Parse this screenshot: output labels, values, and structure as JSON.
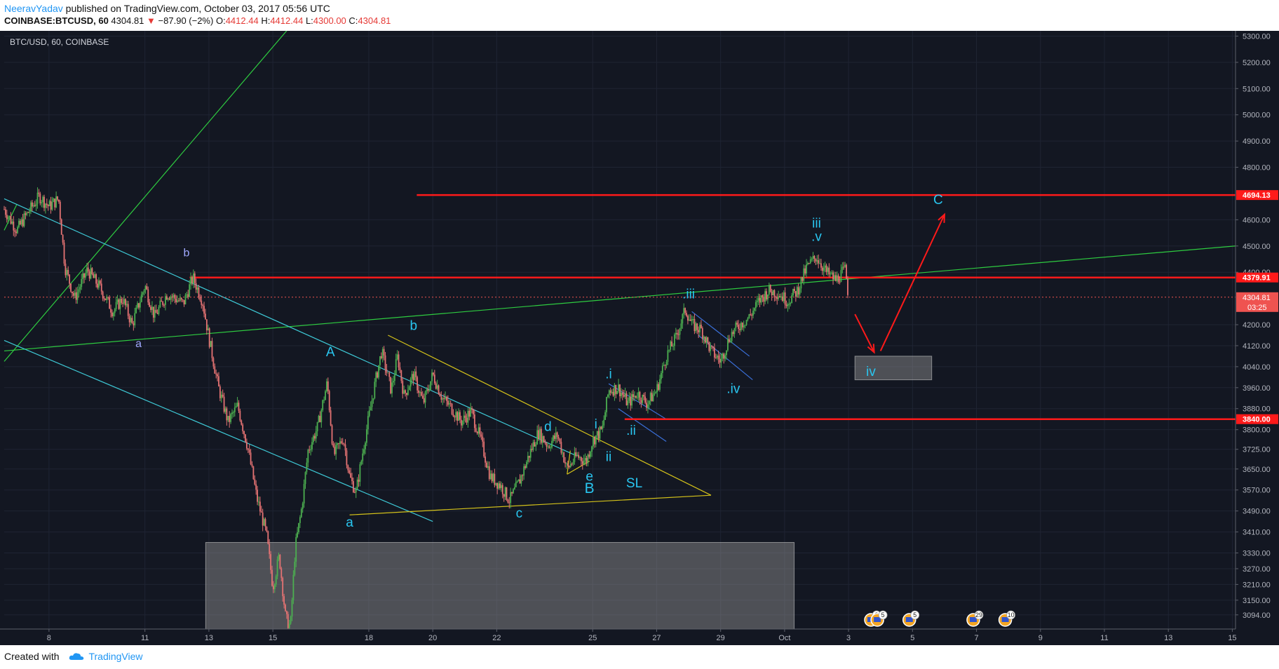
{
  "header": {
    "author": "NeeravYadav",
    "published_text": " published on TradingView.com, October 03, 2017 05:56 UTC",
    "symbol": "COINBASE:BTCUSD, 60",
    "last_price": "4304.81",
    "change": "−87.90 (−2%)",
    "open_label": "O:",
    "open": "4412.44",
    "high_label": "H:",
    "high": "4412.44",
    "low_label": "L:",
    "low": "4300.00",
    "close_label": "C:",
    "close": "4304.81"
  },
  "footer": {
    "created_with": "Created with",
    "brand": "TradingView"
  },
  "colors": {
    "background": "#131722",
    "grid": "#1f2433",
    "up": "#4caf50",
    "down": "#e57373",
    "red_line": "#ff1a1a",
    "cyan_line": "#3ec9d6",
    "green_line": "#2ecc40",
    "yellow_line": "#d4c21a",
    "wave_label": "#29c6f0"
  },
  "chart_data": {
    "type": "candlestick",
    "title": "BTC/USD, 60, COINBASE",
    "ylim": [
      3040,
      5320
    ],
    "y_ticks": [
      5300,
      5200,
      5100,
      5000,
      4900,
      4800,
      4600,
      4500,
      4400,
      4200,
      4120,
      4040,
      3960,
      3880,
      3800,
      3725,
      3650,
      3570,
      3490,
      3410,
      3330,
      3270,
      3210,
      3150,
      3094
    ],
    "y_tick_labels": [
      "5300.00",
      "5200.00",
      "5100.00",
      "5000.00",
      "4900.00",
      "4800.00",
      "4600.00",
      "4500.00",
      "4400.00",
      "4200.00",
      "4120.00",
      "4040.00",
      "3960.00",
      "3880.00",
      "3800.00",
      "3725.00",
      "3650.00",
      "3570.00",
      "3490.00",
      "3410.00",
      "3330.00",
      "3270.00",
      "3210.00",
      "3150.00",
      "3094.00"
    ],
    "x_ticks": [
      {
        "label": "8",
        "day": 8
      },
      {
        "label": "11",
        "day": 11
      },
      {
        "label": "13",
        "day": 13
      },
      {
        "label": "15",
        "day": 15
      },
      {
        "label": "18",
        "day": 18
      },
      {
        "label": "20",
        "day": 20
      },
      {
        "label": "22",
        "day": 22
      },
      {
        "label": "25",
        "day": 25
      },
      {
        "label": "27",
        "day": 27
      },
      {
        "label": "29",
        "day": 29
      },
      {
        "label": "Oct",
        "day": 31
      },
      {
        "label": "3",
        "day": 33
      },
      {
        "label": "5",
        "day": 35
      },
      {
        "label": "7",
        "day": 37
      },
      {
        "label": "9",
        "day": 39
      },
      {
        "label": "11",
        "day": 41
      },
      {
        "label": "13",
        "day": 43
      },
      {
        "label": "15",
        "day": 45
      }
    ],
    "x_range_days": [
      6.6,
      45.1
    ],
    "price_path": [
      [
        6.6,
        4640
      ],
      [
        7.0,
        4560
      ],
      [
        7.3,
        4620
      ],
      [
        7.7,
        4690
      ],
      [
        8.0,
        4650
      ],
      [
        8.3,
        4680
      ],
      [
        8.5,
        4420
      ],
      [
        8.8,
        4300
      ],
      [
        9.2,
        4410
      ],
      [
        9.6,
        4340
      ],
      [
        10.0,
        4250
      ],
      [
        10.3,
        4300
      ],
      [
        10.6,
        4200
      ],
      [
        11.0,
        4350
      ],
      [
        11.3,
        4230
      ],
      [
        11.7,
        4320
      ],
      [
        12.2,
        4280
      ],
      [
        12.5,
        4380
      ],
      [
        12.8,
        4290
      ],
      [
        13.0,
        4150
      ],
      [
        13.3,
        3960
      ],
      [
        13.6,
        3830
      ],
      [
        13.9,
        3890
      ],
      [
        14.2,
        3740
      ],
      [
        14.5,
        3540
      ],
      [
        14.8,
        3400
      ],
      [
        15.0,
        3200
      ],
      [
        15.2,
        3320
      ],
      [
        15.4,
        3080
      ],
      [
        15.55,
        3050
      ],
      [
        15.7,
        3350
      ],
      [
        15.9,
        3500
      ],
      [
        16.1,
        3720
      ],
      [
        16.4,
        3810
      ],
      [
        16.7,
        3980
      ],
      [
        16.9,
        3700
      ],
      [
        17.2,
        3770
      ],
      [
        17.4,
        3620
      ],
      [
        17.6,
        3560
      ],
      [
        17.9,
        3780
      ],
      [
        18.2,
        3980
      ],
      [
        18.4,
        4100
      ],
      [
        18.7,
        3950
      ],
      [
        18.9,
        4080
      ],
      [
        19.1,
        3930
      ],
      [
        19.4,
        4010
      ],
      [
        19.7,
        3900
      ],
      [
        20.0,
        4010
      ],
      [
        20.3,
        3920
      ],
      [
        20.6,
        3880
      ],
      [
        20.9,
        3830
      ],
      [
        21.2,
        3870
      ],
      [
        21.5,
        3760
      ],
      [
        21.8,
        3620
      ],
      [
        22.1,
        3590
      ],
      [
        22.4,
        3530
      ],
      [
        22.7,
        3600
      ],
      [
        23.0,
        3700
      ],
      [
        23.3,
        3790
      ],
      [
        23.6,
        3740
      ],
      [
        23.9,
        3780
      ],
      [
        24.2,
        3650
      ],
      [
        24.5,
        3700
      ],
      [
        24.8,
        3680
      ],
      [
        25.0,
        3760
      ],
      [
        25.3,
        3800
      ],
      [
        25.5,
        3950
      ],
      [
        25.8,
        3960
      ],
      [
        26.1,
        3900
      ],
      [
        26.4,
        3940
      ],
      [
        26.7,
        3900
      ],
      [
        27.0,
        3950
      ],
      [
        27.3,
        4080
      ],
      [
        27.6,
        4150
      ],
      [
        27.9,
        4260
      ],
      [
        28.1,
        4200
      ],
      [
        28.4,
        4180
      ],
      [
        28.7,
        4100
      ],
      [
        29.0,
        4060
      ],
      [
        29.3,
        4160
      ],
      [
        29.6,
        4200
      ],
      [
        29.9,
        4230
      ],
      [
        30.2,
        4290
      ],
      [
        30.5,
        4330
      ],
      [
        30.8,
        4320
      ],
      [
        31.1,
        4290
      ],
      [
        31.4,
        4330
      ],
      [
        31.7,
        4420
      ],
      [
        32.0,
        4460
      ],
      [
        32.3,
        4400
      ],
      [
        32.6,
        4370
      ],
      [
        32.9,
        4410
      ],
      [
        33.0,
        4305
      ]
    ],
    "horizontal_lines": [
      {
        "price": 4694.13,
        "label": "4694.13",
        "start_day": 19.5
      },
      {
        "price": 4379.91,
        "label": "4379.91",
        "start_day": 12.4
      },
      {
        "price": 3840.0,
        "label": "3840.00",
        "start_day": 26.0
      }
    ],
    "current_price": {
      "price": 4304.81,
      "label": "4304.81",
      "countdown": "03:25"
    },
    "trend_lines": [
      {
        "color": "green",
        "from": [
          6.6,
          4060
        ],
        "to": [
          15.5,
          5330
        ]
      },
      {
        "color": "green",
        "from": [
          6.6,
          4100
        ],
        "to": [
          45.1,
          4500
        ]
      },
      {
        "color": "green",
        "from": [
          6.6,
          4560
        ],
        "to": [
          7.0,
          4660
        ]
      },
      {
        "color": "cyan",
        "from": [
          6.6,
          4680
        ],
        "to": [
          24.5,
          3700
        ]
      },
      {
        "color": "cyan",
        "from": [
          6.6,
          4140
        ],
        "to": [
          20.0,
          3450
        ]
      },
      {
        "color": "yellow",
        "from": [
          18.6,
          4160
        ],
        "to": [
          28.7,
          3550
        ]
      },
      {
        "color": "yellow",
        "from": [
          17.4,
          3475
        ],
        "to": [
          28.7,
          3550
        ]
      },
      {
        "color": "yellow",
        "from": [
          24.2,
          3630
        ],
        "to": [
          24.9,
          3680
        ]
      },
      {
        "color": "yellow",
        "from": [
          24.2,
          3630
        ],
        "to": [
          24.3,
          3720
        ]
      },
      {
        "color": "blue",
        "from": [
          25.5,
          3975
        ],
        "to": [
          27.3,
          3840
        ]
      },
      {
        "color": "blue",
        "from": [
          25.8,
          3880
        ],
        "to": [
          27.3,
          3755
        ]
      },
      {
        "color": "blue",
        "from": [
          28.1,
          4250
        ],
        "to": [
          29.9,
          4080
        ]
      },
      {
        "color": "blue",
        "from": [
          28.3,
          4160
        ],
        "to": [
          30.0,
          3990
        ]
      }
    ],
    "boxes": [
      {
        "from": [
          12.9,
          3370
        ],
        "to": [
          31.3,
          3040
        ],
        "color": "grey"
      },
      {
        "from": [
          33.2,
          4080
        ],
        "to": [
          35.6,
          3990
        ],
        "color": "grey"
      }
    ],
    "arrows": [
      {
        "from": [
          33.2,
          4240
        ],
        "to": [
          33.8,
          4095
        ]
      },
      {
        "from": [
          34.0,
          4100
        ],
        "to": [
          36.0,
          4620
        ]
      }
    ],
    "annotations": [
      {
        "text": "b",
        "day": 12.3,
        "price": 4460,
        "size": 16,
        "color": "#a0a8ff"
      },
      {
        "text": "a",
        "day": 10.8,
        "price": 4115,
        "size": 16,
        "color": "#a0a8ff"
      },
      {
        "text": "A",
        "day": 16.8,
        "price": 4080,
        "size": 19,
        "color": "#29c6f0"
      },
      {
        "text": "b",
        "day": 19.4,
        "price": 4180,
        "size": 19,
        "color": "#29c6f0"
      },
      {
        "text": "a",
        "day": 17.4,
        "price": 3430,
        "size": 19,
        "color": "#29c6f0"
      },
      {
        "text": "c",
        "day": 22.7,
        "price": 3465,
        "size": 19,
        "color": "#29c6f0"
      },
      {
        "text": "d",
        "day": 23.6,
        "price": 3795,
        "size": 19,
        "color": "#29c6f0"
      },
      {
        "text": "e",
        "day": 24.9,
        "price": 3605,
        "size": 19,
        "color": "#29c6f0"
      },
      {
        "text": "B",
        "day": 24.9,
        "price": 3558,
        "size": 21,
        "color": "#29c6f0"
      },
      {
        "text": "SL",
        "day": 26.3,
        "price": 3580,
        "size": 19,
        "color": "#29c6f0"
      },
      {
        "text": "i",
        "day": 25.1,
        "price": 3805,
        "size": 19,
        "color": "#29c6f0"
      },
      {
        "text": "ii",
        "day": 25.5,
        "price": 3680,
        "size": 19,
        "color": "#29c6f0"
      },
      {
        "text": ".i",
        "day": 25.5,
        "price": 3995,
        "size": 19,
        "color": "#29c6f0"
      },
      {
        "text": ".ii",
        "day": 26.2,
        "price": 3780,
        "size": 19,
        "color": "#29c6f0"
      },
      {
        "text": ".iii",
        "day": 28.0,
        "price": 4300,
        "size": 19,
        "color": "#29c6f0"
      },
      {
        "text": ".iv",
        "day": 29.4,
        "price": 3940,
        "size": 19,
        "color": "#29c6f0"
      },
      {
        "text": "iii",
        "day": 32.0,
        "price": 4570,
        "size": 19,
        "color": "#29c6f0"
      },
      {
        "text": ".v",
        "day": 32.0,
        "price": 4520,
        "size": 19,
        "color": "#29c6f0"
      },
      {
        "text": "C",
        "day": 35.8,
        "price": 4660,
        "size": 19,
        "color": "#29c6f0"
      },
      {
        "text": "iv",
        "day": 33.7,
        "price": 4005,
        "size": 19,
        "color": "#29c6f0"
      }
    ],
    "event_markers": [
      {
        "day": 33.7,
        "count": "2"
      },
      {
        "day": 33.9,
        "count": "5"
      },
      {
        "day": 34.9,
        "count": "5"
      },
      {
        "day": 36.9,
        "count": "29"
      },
      {
        "day": 37.9,
        "count": "10"
      }
    ]
  }
}
